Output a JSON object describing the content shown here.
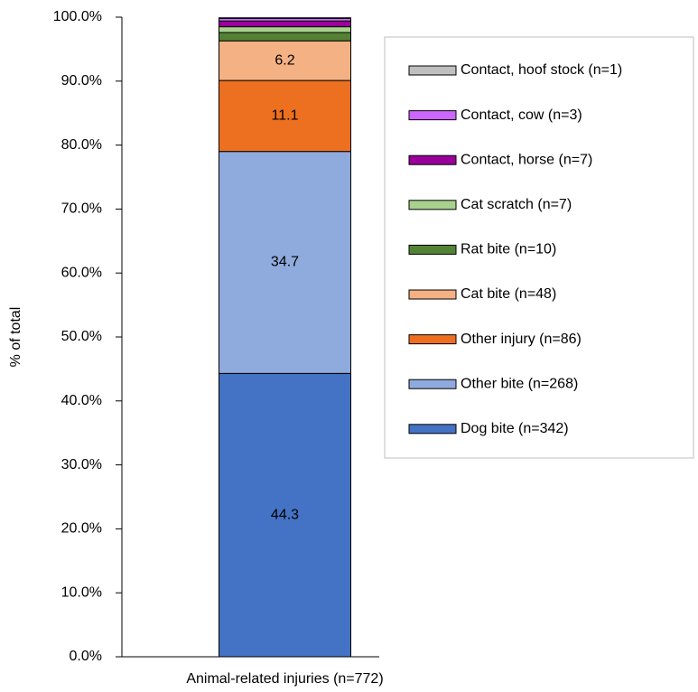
{
  "chart_data": {
    "type": "stacked-bar",
    "categories": [
      "Animal-related injuries (n=772)"
    ],
    "y_label": "% of total",
    "ylim": [
      0,
      100
    ],
    "yticks": [
      {
        "value": 0,
        "label": "0.0%"
      },
      {
        "value": 10,
        "label": "10.0%"
      },
      {
        "value": 20,
        "label": "20.0%"
      },
      {
        "value": 30,
        "label": "30.0%"
      },
      {
        "value": 40,
        "label": "40.0%"
      },
      {
        "value": 50,
        "label": "50.0%"
      },
      {
        "value": 60,
        "label": "60.0%"
      },
      {
        "value": 70,
        "label": "70.0%"
      },
      {
        "value": 80,
        "label": "80.0%"
      },
      {
        "value": 90,
        "label": "90.0%"
      },
      {
        "value": 100,
        "label": "100.0%"
      }
    ],
    "legend": "right",
    "series": [
      {
        "name": "Dog bite (n=342)",
        "color": "#4472c4",
        "values": [
          44.3
        ],
        "value_labels": [
          "44.3"
        ],
        "label_color": "#ffffff"
      },
      {
        "name": "Other bite (n=268)",
        "color": "#8faadc",
        "values": [
          34.7
        ],
        "value_labels": [
          "34.7"
        ],
        "label_color": "#000000"
      },
      {
        "name": "Other injury (n=86)",
        "color": "#ed7020",
        "values": [
          11.1
        ],
        "value_labels": [
          "11.1"
        ],
        "label_color": "#000000"
      },
      {
        "name": "Cat bite (n=48)",
        "color": "#f4b183",
        "values": [
          6.2
        ],
        "value_labels": [
          "6.2"
        ],
        "label_color": "#000000"
      },
      {
        "name": "Rat bite (n=10)",
        "color": "#548235",
        "values": [
          1.3
        ]
      },
      {
        "name": "Cat scratch (n=7)",
        "color": "#a9d18e",
        "values": [
          0.9
        ]
      },
      {
        "name": "Contact, horse (n=7)",
        "color": "#990099",
        "values": [
          0.9
        ]
      },
      {
        "name": "Contact, cow (n=3)",
        "color": "#cc66ff",
        "values": [
          0.4
        ]
      },
      {
        "name": "Contact, hoof stock (n=1)",
        "color": "#bfbfbf",
        "values": [
          0.1
        ]
      }
    ]
  }
}
